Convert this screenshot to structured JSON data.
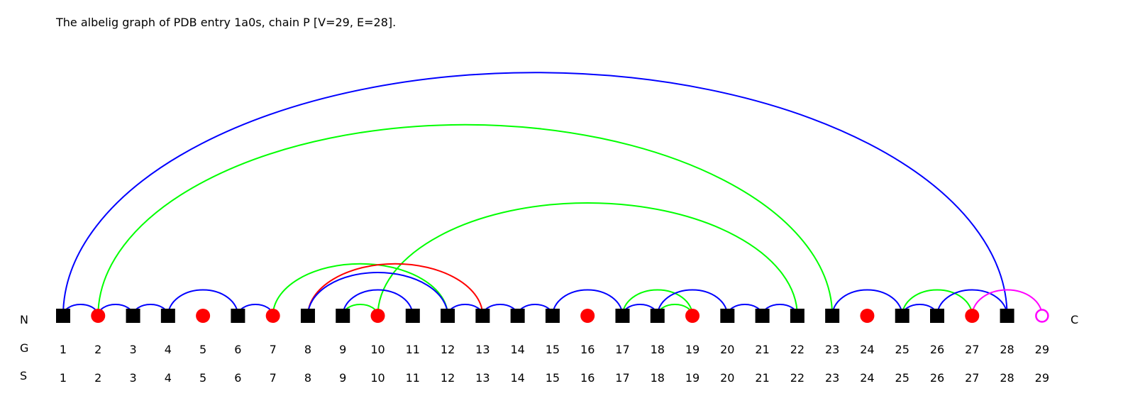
{
  "title": "The albelig graph of PDB entry 1a0s, chain P [V=29, E=28].",
  "terminus_labels": {
    "n": "N",
    "c": "C"
  },
  "row_labels": {
    "graph": "G",
    "sequence": "S"
  },
  "legend_colors": {
    "parallel": "#ff0000",
    "antiparallel": "#00ff00",
    "mixed": "#0000ff",
    "ligand": "#ff00ff"
  },
  "vertex_shapes": {
    "E": "square",
    "H": "circle",
    "L": "ring"
  },
  "vertices": [
    {
      "g": "1",
      "s": "1",
      "type": "E"
    },
    {
      "g": "2",
      "s": "2",
      "type": "H"
    },
    {
      "g": "3",
      "s": "3",
      "type": "E"
    },
    {
      "g": "4",
      "s": "4",
      "type": "E"
    },
    {
      "g": "5",
      "s": "5",
      "type": "H"
    },
    {
      "g": "6",
      "s": "6",
      "type": "E"
    },
    {
      "g": "7",
      "s": "7",
      "type": "H"
    },
    {
      "g": "8",
      "s": "8",
      "type": "E"
    },
    {
      "g": "9",
      "s": "9",
      "type": "E"
    },
    {
      "g": "10",
      "s": "10",
      "type": "H"
    },
    {
      "g": "11",
      "s": "11",
      "type": "E"
    },
    {
      "g": "12",
      "s": "12",
      "type": "E"
    },
    {
      "g": "13",
      "s": "13",
      "type": "E"
    },
    {
      "g": "14",
      "s": "14",
      "type": "E"
    },
    {
      "g": "15",
      "s": "15",
      "type": "E"
    },
    {
      "g": "16",
      "s": "16",
      "type": "H"
    },
    {
      "g": "17",
      "s": "17",
      "type": "E"
    },
    {
      "g": "18",
      "s": "18",
      "type": "E"
    },
    {
      "g": "19",
      "s": "19",
      "type": "H"
    },
    {
      "g": "20",
      "s": "20",
      "type": "E"
    },
    {
      "g": "21",
      "s": "21",
      "type": "E"
    },
    {
      "g": "22",
      "s": "22",
      "type": "E"
    },
    {
      "g": "23",
      "s": "23",
      "type": "E"
    },
    {
      "g": "24",
      "s": "24",
      "type": "H"
    },
    {
      "g": "25",
      "s": "25",
      "type": "E"
    },
    {
      "g": "26",
      "s": "26",
      "type": "E"
    },
    {
      "g": "27",
      "s": "27",
      "type": "H"
    },
    {
      "g": "28",
      "s": "28",
      "type": "E"
    },
    {
      "g": "29",
      "s": "29",
      "type": "L"
    }
  ],
  "edges": [
    {
      "from": 1,
      "to": 28,
      "kind": "mixed"
    },
    {
      "from": 2,
      "to": 23,
      "kind": "antiparallel"
    },
    {
      "from": 10,
      "to": 22,
      "kind": "antiparallel"
    },
    {
      "from": 1,
      "to": 2,
      "kind": "mixed"
    },
    {
      "from": 2,
      "to": 3,
      "kind": "mixed"
    },
    {
      "from": 3,
      "to": 4,
      "kind": "mixed"
    },
    {
      "from": 4,
      "to": 6,
      "kind": "mixed"
    },
    {
      "from": 6,
      "to": 7,
      "kind": "mixed"
    },
    {
      "from": 7,
      "to": 12,
      "kind": "antiparallel"
    },
    {
      "from": 8,
      "to": 13,
      "kind": "parallel"
    },
    {
      "from": 8,
      "to": 12,
      "kind": "mixed"
    },
    {
      "from": 9,
      "to": 11,
      "kind": "mixed"
    },
    {
      "from": 9,
      "to": 10,
      "kind": "antiparallel"
    },
    {
      "from": 12,
      "to": 13,
      "kind": "mixed"
    },
    {
      "from": 13,
      "to": 14,
      "kind": "mixed"
    },
    {
      "from": 14,
      "to": 15,
      "kind": "mixed"
    },
    {
      "from": 15,
      "to": 17,
      "kind": "mixed"
    },
    {
      "from": 17,
      "to": 19,
      "kind": "antiparallel"
    },
    {
      "from": 17,
      "to": 18,
      "kind": "mixed"
    },
    {
      "from": 18,
      "to": 19,
      "kind": "antiparallel"
    },
    {
      "from": 18,
      "to": 20,
      "kind": "mixed"
    },
    {
      "from": 20,
      "to": 21,
      "kind": "mixed"
    },
    {
      "from": 21,
      "to": 22,
      "kind": "mixed"
    },
    {
      "from": 23,
      "to": 25,
      "kind": "mixed"
    },
    {
      "from": 25,
      "to": 27,
      "kind": "antiparallel"
    },
    {
      "from": 25,
      "to": 26,
      "kind": "mixed"
    },
    {
      "from": 26,
      "to": 28,
      "kind": "mixed"
    },
    {
      "from": 27,
      "to": 29,
      "kind": "ligand"
    }
  ]
}
